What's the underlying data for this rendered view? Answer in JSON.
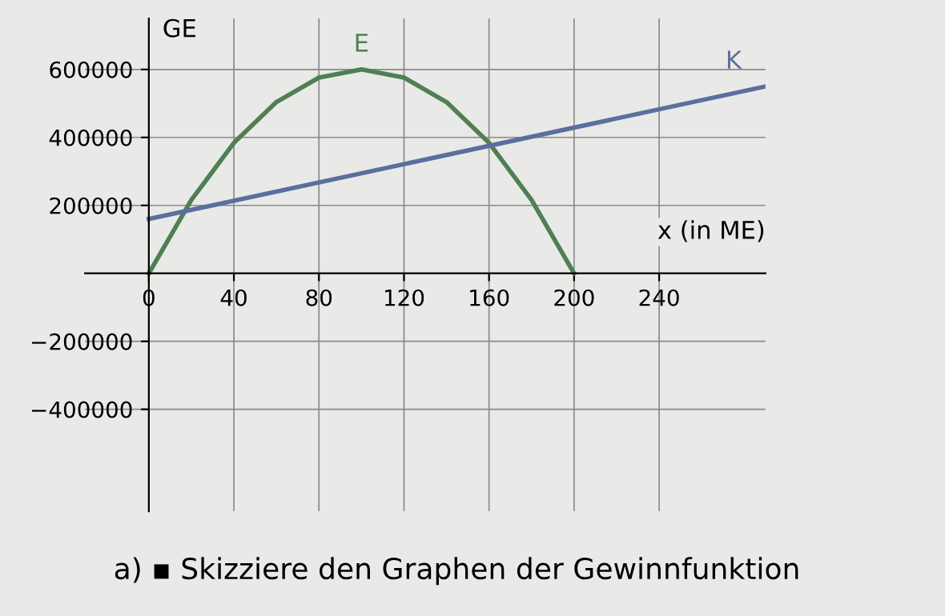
{
  "chart_data": {
    "type": "line",
    "xlabel": "x (in ME)",
    "ylabel": "GE",
    "x": [
      0,
      20,
      40,
      60,
      80,
      100,
      120,
      140,
      160,
      180,
      200
    ],
    "xlim": [
      -30,
      290
    ],
    "ylim": [
      -700000,
      750000
    ],
    "xticks": [
      0,
      40,
      80,
      120,
      160,
      200,
      240
    ],
    "yticks": [
      {
        "value": -400000,
        "label": "−400000"
      },
      {
        "value": -200000,
        "label": "−200000"
      },
      200000,
      400000,
      600000
    ],
    "series": [
      {
        "name": "E",
        "color": "#4f7f52",
        "values": [
          0,
          216000,
          384000,
          504000,
          576000,
          600000,
          576000,
          504000,
          384000,
          216000,
          0
        ]
      },
      {
        "name": "K",
        "color": "#5b6f9e",
        "x": [
          0,
          290
        ],
        "values": [
          160000,
          550000
        ]
      }
    ],
    "grid": true,
    "legend": false,
    "marker": "none",
    "line_style": "solid",
    "annotations": [
      "a) ▪ Skizziere den Graphen der Gewinnfunktion"
    ]
  }
}
